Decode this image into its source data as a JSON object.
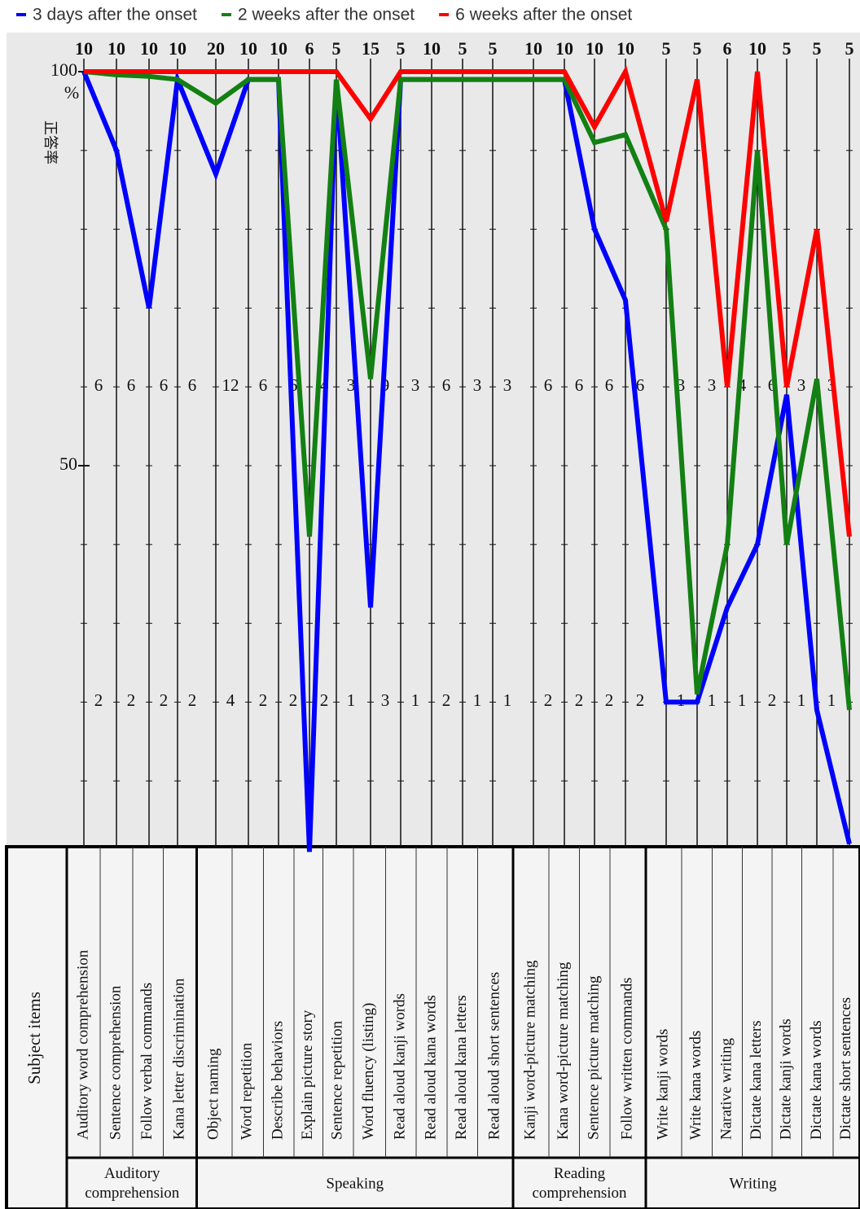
{
  "chart_data": {
    "type": "line",
    "legend_position": "top-left",
    "ylabel": "正答率",
    "y_unit": "%",
    "ylim": [
      0,
      100
    ],
    "yticks": [
      50,
      100
    ],
    "categories": [
      "Auditory word comprehension",
      "Sentence comprehension",
      "Follow verbal commands",
      "Kana letter discrimination",
      "Object naming",
      "Word repetition",
      "Describe behaviors",
      "Explain picture story",
      "Sentence repetition",
      "Word fluency (listing)",
      "Read aloud kanji words",
      "Read aloud kana words",
      "Read aloud kana letters",
      "Read aloud short sentences",
      "Kanji word-picture matching",
      "Kana word-picture matching",
      "Sentence picture matching",
      "Follow written commands",
      "Write kanji words",
      "Write kana words",
      "Narative writing",
      "Dictate kana letters",
      "Dictate kanji words",
      "Dictate kana words",
      "Dictate short sentences"
    ],
    "max_scores": [
      10,
      10,
      10,
      10,
      20,
      10,
      10,
      6,
      5,
      15,
      5,
      10,
      5,
      5,
      10,
      10,
      10,
      10,
      5,
      5,
      6,
      10,
      5,
      5,
      5
    ],
    "level_60_scores": [
      6,
      6,
      6,
      6,
      12,
      6,
      6,
      4,
      3,
      9,
      3,
      6,
      3,
      3,
      6,
      6,
      6,
      6,
      3,
      3,
      4,
      6,
      3,
      3,
      3
    ],
    "level_20_scores": [
      2,
      2,
      2,
      2,
      4,
      2,
      2,
      2,
      1,
      3,
      1,
      2,
      1,
      1,
      2,
      2,
      2,
      2,
      1,
      1,
      1,
      2,
      1,
      1,
      1
    ],
    "table_header": "Subject items",
    "groups": [
      {
        "name": "Auditory comprehension",
        "count": 4
      },
      {
        "name": "Speaking",
        "count": 10
      },
      {
        "name": "Reading comprehension",
        "count": 4
      },
      {
        "name": "Writing",
        "count": 7
      }
    ],
    "series": [
      {
        "name": "3 days after the onset",
        "color": "#0000ff",
        "values": [
          100,
          90,
          70,
          99,
          87,
          99,
          99,
          1,
          99,
          32,
          99,
          99,
          99,
          99,
          99,
          99,
          80,
          71,
          20,
          20,
          32,
          40,
          59,
          19,
          2
        ]
      },
      {
        "name": "2 weeks after the onset",
        "color": "#138013",
        "values": [
          100,
          99.6,
          99.4,
          99,
          96,
          99,
          99,
          41,
          99,
          61,
          99,
          99,
          99,
          99,
          99,
          99,
          91,
          92,
          80,
          21,
          40,
          90,
          40,
          61,
          19
        ]
      },
      {
        "name": "6 weeks after the onset",
        "color": "#ff0000",
        "values": [
          100,
          100,
          100,
          100,
          100,
          100,
          100,
          100,
          100,
          94,
          100,
          100,
          100,
          100,
          100,
          100,
          93,
          100,
          81,
          99,
          60,
          100,
          60,
          80,
          41
        ]
      }
    ]
  }
}
